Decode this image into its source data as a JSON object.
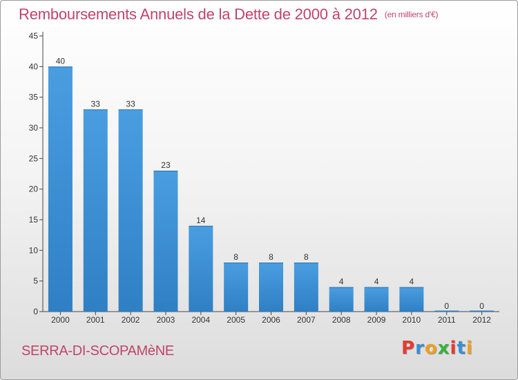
{
  "chart_title": "Remboursements Annuels de la Dette de 2000 à 2012",
  "chart_unit": "(en milliers d'€)",
  "commune": "SERRA-DI-SCOPAMèNE",
  "brand": {
    "letters": [
      "P",
      "r",
      "o",
      "x",
      "i",
      "t",
      "i"
    ],
    "colors": [
      "#e8392f",
      "#3a8fd6",
      "#f0a020",
      "#3ab03a",
      "#e8392f",
      "#3a8fd6",
      "#f0a020"
    ]
  },
  "colors": {
    "bar": "#4a9ee0",
    "bar_dark": "#2f7fc4",
    "title": "#c0436b"
  },
  "chart_data": {
    "type": "bar",
    "categories": [
      "2000",
      "2001",
      "2002",
      "2003",
      "2004",
      "2005",
      "2006",
      "2007",
      "2008",
      "2009",
      "2010",
      "2011",
      "2012"
    ],
    "values": [
      40,
      33,
      33,
      23,
      14,
      8,
      8,
      8,
      4,
      4,
      4,
      0,
      0
    ],
    "data_labels": [
      "40",
      "33",
      "33",
      "23",
      "14",
      "8",
      "8",
      "8",
      "4",
      "4",
      "4",
      "0",
      "0"
    ],
    "yticks": [
      "0",
      "5",
      "10",
      "15",
      "20",
      "25",
      "30",
      "35",
      "40",
      "45"
    ],
    "ylim": [
      0,
      45
    ],
    "grid": false,
    "legend": "none"
  }
}
